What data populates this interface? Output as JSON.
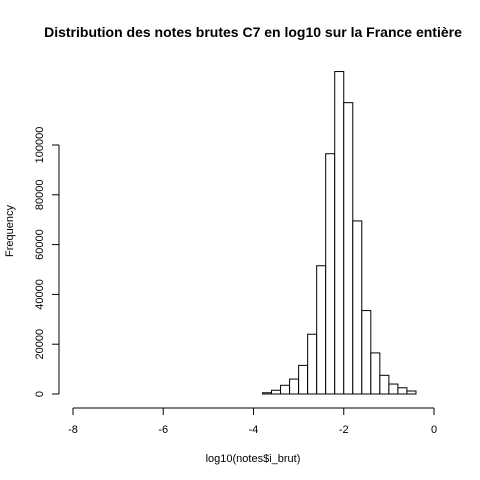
{
  "chart_data": {
    "type": "bar",
    "title": "Distribution des notes brutes C7 en log10 sur la France entière",
    "xlabel": "log10(notes$i_brut)",
    "ylabel": "Frequency",
    "xlim": [
      -8,
      0
    ],
    "ylim": [
      0,
      120000
    ],
    "x_ticks": [
      -8,
      -6,
      -4,
      -2,
      0
    ],
    "y_ticks": [
      0,
      20000,
      40000,
      60000,
      80000,
      100000
    ],
    "bin_width": 0.2,
    "bins": [
      {
        "x0": -8.0,
        "x1": -7.8,
        "value": 0
      },
      {
        "x0": -7.8,
        "x1": -7.6,
        "value": 0
      },
      {
        "x0": -7.6,
        "x1": -7.4,
        "value": 0
      },
      {
        "x0": -7.4,
        "x1": -7.2,
        "value": 0
      },
      {
        "x0": -7.2,
        "x1": -7.0,
        "value": 0
      },
      {
        "x0": -7.0,
        "x1": -6.8,
        "value": 0
      },
      {
        "x0": -6.8,
        "x1": -6.6,
        "value": 0
      },
      {
        "x0": -6.6,
        "x1": -6.4,
        "value": 0
      },
      {
        "x0": -6.4,
        "x1": -6.2,
        "value": 0
      },
      {
        "x0": -6.2,
        "x1": -6.0,
        "value": 0
      },
      {
        "x0": -6.0,
        "x1": -5.8,
        "value": 0
      },
      {
        "x0": -5.8,
        "x1": -5.6,
        "value": 0
      },
      {
        "x0": -5.6,
        "x1": -5.4,
        "value": 0
      },
      {
        "x0": -5.4,
        "x1": -5.2,
        "value": 0
      },
      {
        "x0": -5.2,
        "x1": -5.0,
        "value": 0
      },
      {
        "x0": -5.0,
        "x1": -4.8,
        "value": 0
      },
      {
        "x0": -4.8,
        "x1": -4.6,
        "value": 0
      },
      {
        "x0": -4.6,
        "x1": -4.4,
        "value": 0
      },
      {
        "x0": -4.4,
        "x1": -4.2,
        "value": 0
      },
      {
        "x0": -4.2,
        "x1": -4.0,
        "value": 0
      },
      {
        "x0": -4.0,
        "x1": -3.8,
        "value": 0
      },
      {
        "x0": -3.8,
        "x1": -3.6,
        "value": 500
      },
      {
        "x0": -3.6,
        "x1": -3.4,
        "value": 1500
      },
      {
        "x0": -3.4,
        "x1": -3.2,
        "value": 3500
      },
      {
        "x0": -3.2,
        "x1": -3.0,
        "value": 6000
      },
      {
        "x0": -3.0,
        "x1": -2.8,
        "value": 11500
      },
      {
        "x0": -2.8,
        "x1": -2.6,
        "value": 24000
      },
      {
        "x0": -2.6,
        "x1": -2.4,
        "value": 51500
      },
      {
        "x0": -2.4,
        "x1": -2.2,
        "value": 96500
      },
      {
        "x0": -2.2,
        "x1": -2.0,
        "value": 129500
      },
      {
        "x0": -2.0,
        "x1": -1.8,
        "value": 117000
      },
      {
        "x0": -1.8,
        "x1": -1.6,
        "value": 69500
      },
      {
        "x0": -1.6,
        "x1": -1.4,
        "value": 33500
      },
      {
        "x0": -1.4,
        "x1": -1.2,
        "value": 16500
      },
      {
        "x0": -1.2,
        "x1": -1.0,
        "value": 7500
      },
      {
        "x0": -1.0,
        "x1": -0.8,
        "value": 4000
      },
      {
        "x0": -0.8,
        "x1": -0.6,
        "value": 2500
      },
      {
        "x0": -0.6,
        "x1": -0.4,
        "value": 1200
      }
    ]
  }
}
